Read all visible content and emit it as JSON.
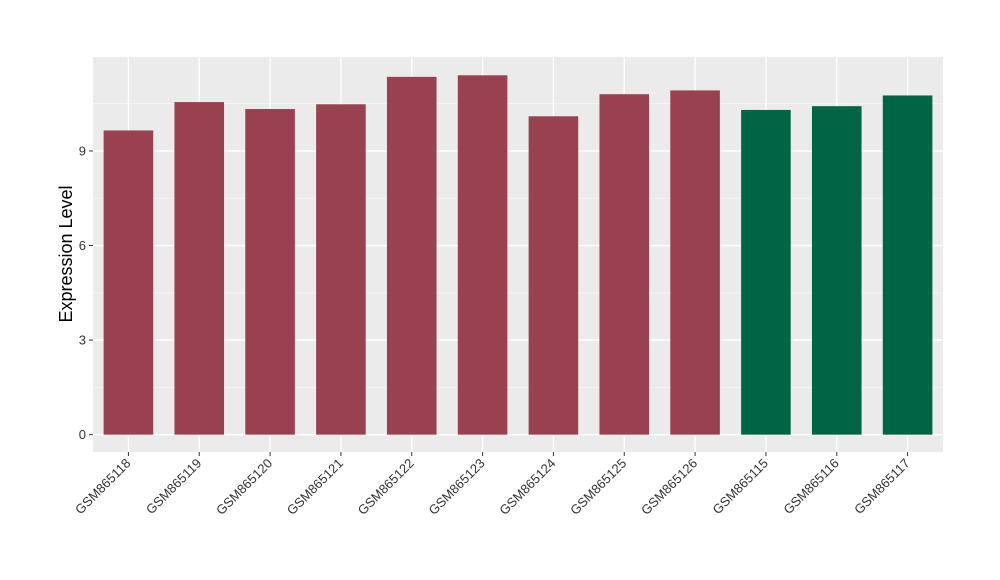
{
  "chart_data": {
    "type": "bar",
    "categories": [
      "GSM865118",
      "GSM865119",
      "GSM865120",
      "GSM865121",
      "GSM865122",
      "GSM865123",
      "GSM865124",
      "GSM865125",
      "GSM865126",
      "GSM865115",
      "GSM865116",
      "GSM865117"
    ],
    "values": [
      9.65,
      10.55,
      10.33,
      10.48,
      11.35,
      11.4,
      10.1,
      10.8,
      10.92,
      10.3,
      10.42,
      10.76
    ],
    "groups": [
      "a",
      "a",
      "a",
      "a",
      "a",
      "a",
      "a",
      "a",
      "a",
      "b",
      "b",
      "b"
    ],
    "group_colors": {
      "a": "#9a4150",
      "b": "#006544"
    },
    "ylabel": "Expression Level",
    "xlabel": "",
    "ylim": [
      -0.55,
      11.98
    ],
    "yticks": [
      0,
      3,
      6,
      9
    ],
    "ytick_labels": [
      "0",
      "3",
      "6",
      "9"
    ],
    "grid": true,
    "legend": "none"
  }
}
